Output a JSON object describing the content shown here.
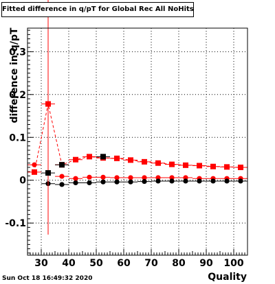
{
  "chart_data": {
    "type": "scatter",
    "title": "Fitted difference in q/pT  for Global Rec All NoHits",
    "xlabel": "Quality",
    "ylabel": "difference in q/pT",
    "xlim": [
      25,
      105
    ],
    "ylim": [
      -0.175,
      0.355
    ],
    "xticks": [
      30,
      40,
      50,
      60,
      70,
      80,
      90,
      100
    ],
    "yticks": [
      -0.1,
      0,
      0.1,
      0.2,
      0.3
    ],
    "ytick_labels": [
      "-0.1",
      "0",
      "0.1",
      "0.2",
      "0.3"
    ],
    "grid": true,
    "x": [
      27.5,
      32.5,
      37.5,
      42.5,
      47.5,
      52.5,
      57.5,
      62.5,
      67.5,
      72.5,
      77.5,
      82.5,
      87.5,
      92.5,
      97.5,
      102.5
    ],
    "series": [
      {
        "marker": "circle",
        "color": "#ff0000",
        "connected": false,
        "values": [
          0.036,
          null,
          0.009,
          0.004,
          0.007,
          0.007,
          0.006,
          0.006,
          0.006,
          0.006,
          0.006,
          0.006,
          0.004,
          0.004,
          0.004,
          0.004
        ]
      },
      {
        "marker": "circle",
        "color": "#000000",
        "connected": false,
        "values": [
          null,
          -0.008,
          -0.01,
          -0.006,
          -0.006,
          -0.004,
          -0.004,
          -0.004,
          -0.003,
          -0.002,
          -0.002,
          -0.002,
          -0.002,
          -0.002,
          -0.002,
          -0.002
        ]
      },
      {
        "marker": "square",
        "color": "#ff0000",
        "connected": true,
        "values": [
          0.019,
          0.178,
          0.036,
          0.048,
          0.055,
          0.052,
          0.051,
          0.047,
          0.043,
          0.04,
          0.037,
          0.035,
          0.034,
          0.032,
          0.031,
          0.03
        ],
        "errors": [
          0,
          0.305,
          0,
          0,
          0,
          0,
          0,
          0,
          0,
          0,
          0,
          0,
          0,
          0,
          0,
          0
        ]
      },
      {
        "marker": "square",
        "color": "#000000",
        "connected": false,
        "values": [
          null,
          0.017,
          0.036,
          null,
          null,
          0.055,
          null,
          null,
          null,
          null,
          null,
          null,
          null,
          null,
          null,
          null
        ]
      }
    ]
  },
  "footer": {
    "timestamp": "Sun Oct 18 16:49:32 2020"
  }
}
